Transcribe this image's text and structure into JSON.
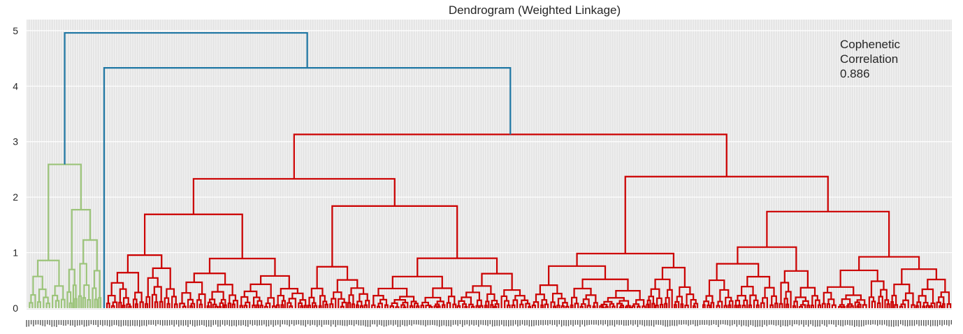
{
  "chart_data": {
    "type": "dendrogram",
    "title": "Dendrogram (Weighted Linkage)",
    "ylim": [
      0,
      5.2
    ],
    "yticks": [
      "0",
      "1",
      "2",
      "3",
      "4",
      "5"
    ],
    "grid": true,
    "background_color": "#e5e5e5",
    "grid_color": "#ffffff",
    "annotation": [
      "Cophenetic",
      "Correlation",
      "0.886"
    ],
    "cophenetic_correlation": 0.886,
    "clusters": [
      {
        "name": "green",
        "color": "#9cc47a",
        "leaf_fraction": 0.083
      },
      {
        "name": "red",
        "color": "#cc0000",
        "leaf_fraction": 0.917
      }
    ],
    "above_threshold_color": "#1f77a4",
    "top_merges": [
      {
        "height": 4.96,
        "joins": [
          "green cluster",
          "node at 4.33"
        ]
      },
      {
        "height": 4.33,
        "joins": [
          "singleton leaf",
          "red cluster root"
        ]
      },
      {
        "height": 3.13,
        "joins": [
          "left red sub-tree",
          "right red sub-tree"
        ]
      },
      {
        "height": 2.59,
        "joins": [
          "green cluster root"
        ]
      },
      {
        "height": 2.37,
        "joins": [
          "red sub-cluster"
        ]
      },
      {
        "height": 2.33,
        "joins": [
          "red sub-cluster"
        ]
      }
    ]
  }
}
